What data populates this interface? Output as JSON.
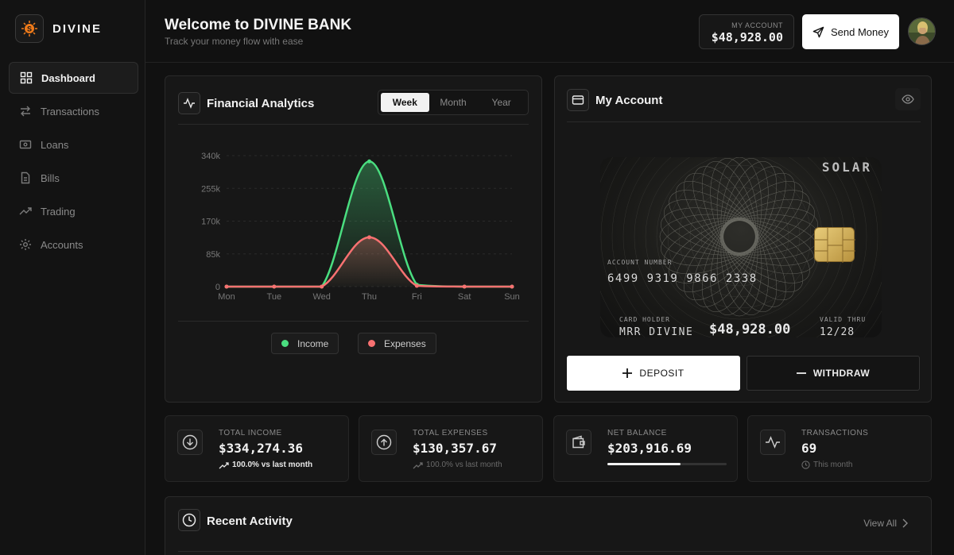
{
  "brand": {
    "name": "DIVINE",
    "logo_glyph": "S"
  },
  "sidebar": {
    "items": [
      {
        "label": "Dashboard",
        "icon": "grid-icon",
        "active": true
      },
      {
        "label": "Transactions",
        "icon": "arrows-icon"
      },
      {
        "label": "Loans",
        "icon": "banknote-icon"
      },
      {
        "label": "Bills",
        "icon": "document-icon"
      },
      {
        "label": "Trading",
        "icon": "trend-icon"
      },
      {
        "label": "Accounts",
        "icon": "gear-icon"
      }
    ]
  },
  "header": {
    "title": "Welcome to DIVINE BANK",
    "subtitle": "Track your money flow with ease",
    "account_label": "MY ACCOUNT",
    "account_value": "$48,928.00",
    "send_money": "Send Money"
  },
  "analytics": {
    "title": "Financial Analytics",
    "tabs": [
      "Week",
      "Month",
      "Year"
    ],
    "active_tab": "Week",
    "legend": {
      "income": "Income",
      "expenses": "Expenses"
    }
  },
  "chart_data": {
    "type": "area",
    "categories": [
      "Mon",
      "Tue",
      "Wed",
      "Thu",
      "Fri",
      "Sat",
      "Sun"
    ],
    "y_ticks": [
      "340k",
      "255k",
      "170k",
      "85k",
      "0"
    ],
    "ylim": [
      0,
      340000
    ],
    "series": [
      {
        "name": "Income",
        "color": "#4ade80",
        "values": [
          0,
          0,
          0,
          325000,
          5000,
          0,
          0
        ]
      },
      {
        "name": "Expenses",
        "color": "#f87171",
        "values": [
          0,
          0,
          0,
          128000,
          2000,
          0,
          0
        ]
      }
    ],
    "grid": true,
    "legend": "bottom"
  },
  "my_account": {
    "title": "My Account",
    "card": {
      "brand": "SOLAR",
      "number_label": "ACCOUNT NUMBER",
      "number": "6499 9319 9866 2338",
      "holder_label": "CARD HOLDER",
      "holder": "MRR DIVINE",
      "balance": "$48,928.00",
      "valid_label": "VALID THRU",
      "valid": "12/28"
    },
    "deposit": "DEPOSIT",
    "withdraw": "WITHDRAW"
  },
  "stats": [
    {
      "label": "TOTAL INCOME",
      "value": "$334,274.36",
      "sub": "100.0% vs last month",
      "icon": "arrow-down-circle-icon",
      "sub_color": "#e8e8e8"
    },
    {
      "label": "TOTAL EXPENSES",
      "value": "$130,357.67",
      "sub": "100.0% vs last month",
      "icon": "arrow-up-circle-icon",
      "sub_color": "#6a6a6a"
    },
    {
      "label": "NET BALANCE",
      "value": "$203,916.69",
      "progress": 0.61,
      "icon": "wallet-icon"
    },
    {
      "label": "TRANSACTIONS",
      "value": "69",
      "sub": "This month",
      "icon": "activity-icon",
      "sub_color": "#6a6a6a"
    }
  ],
  "recent": {
    "title": "Recent Activity",
    "view_all": "View All"
  },
  "colors": {
    "income": "#4ade80",
    "expenses": "#f87171",
    "card_chip": "#d4b15a"
  }
}
